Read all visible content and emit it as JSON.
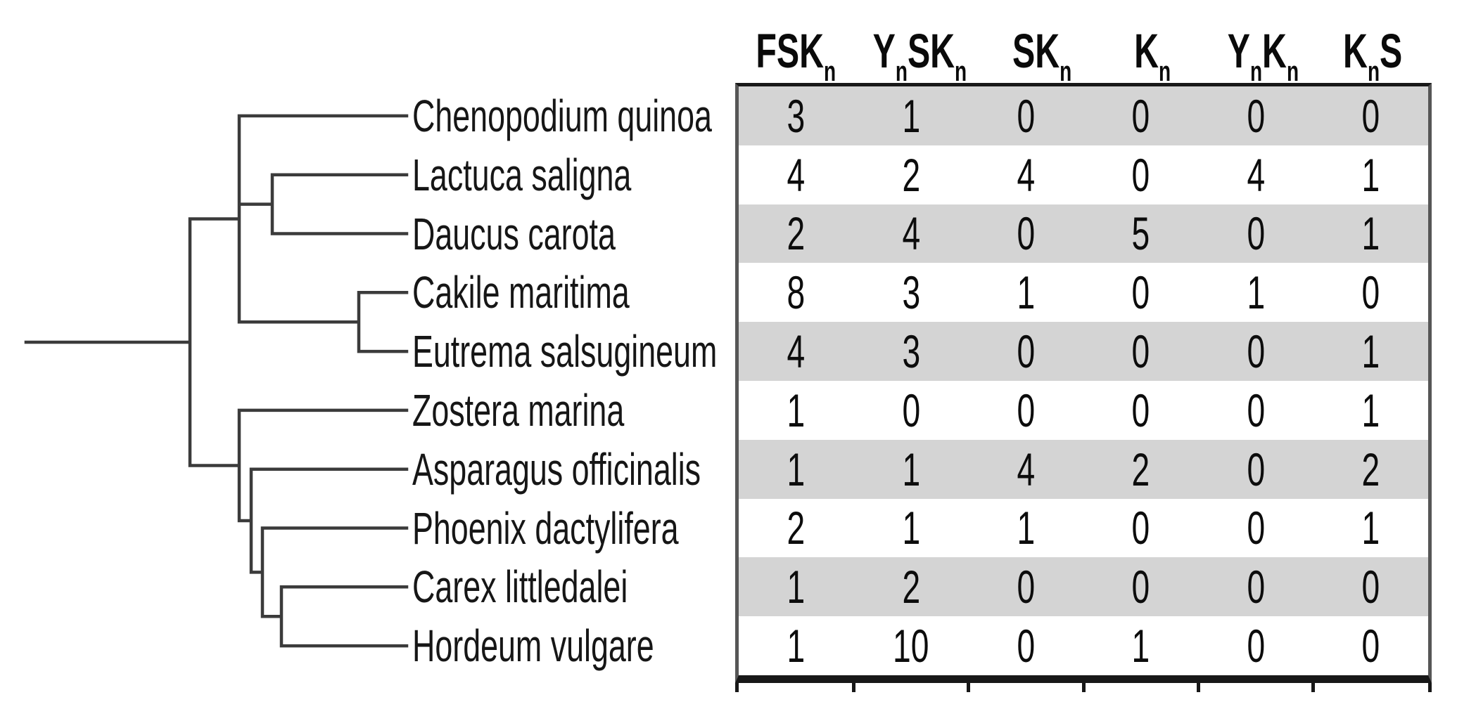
{
  "figure": {
    "description": "Phylogenetic tree of ten plant species with a matrix of gene-architecture counts per species",
    "background_color": "#ffffff",
    "stripe_color": "#d4d4d4",
    "border_color": "#181818",
    "tree_line_color": "#3b3b3b",
    "text_color": "#0c0c0c"
  },
  "tree": {
    "species": [
      "Chenopodium quinoa",
      "Lactuca saligna",
      "Daucus carota",
      "Cakile maritima",
      "Eutrema salsugineum",
      "Zostera marina",
      "Asparagus officinalis",
      "Phoenix dactylifera",
      "Carex littledalei",
      "Hordeum vulgare"
    ],
    "topology_newick": "((Chenopodium quinoa,(Lactuca saligna,Daucus carota),(Cakile maritima,Eutrema salsugineum)),(Zostera marina,(Asparagus officinalis,(Phoenix dactylifera,(Carex littledalei,Hordeum vulgare)))));"
  },
  "table": {
    "header_labels_plain": [
      "FSKn",
      "YnSKn",
      "SKn",
      "Kn",
      "YnKn",
      "KnS"
    ],
    "columns": [
      {
        "segments": [
          {
            "t": "FSK"
          },
          {
            "t": "n",
            "sub": true
          }
        ]
      },
      {
        "segments": [
          {
            "t": "Y"
          },
          {
            "t": "n",
            "sub": true
          },
          {
            "t": "SK"
          },
          {
            "t": "n",
            "sub": true
          }
        ]
      },
      {
        "segments": [
          {
            "t": "SK"
          },
          {
            "t": "n",
            "sub": true
          }
        ]
      },
      {
        "segments": [
          {
            "t": "K"
          },
          {
            "t": "n",
            "sub": true
          }
        ]
      },
      {
        "segments": [
          {
            "t": "Y"
          },
          {
            "t": "n",
            "sub": true
          },
          {
            "t": "K"
          },
          {
            "t": "n",
            "sub": true
          }
        ]
      },
      {
        "segments": [
          {
            "t": "K"
          },
          {
            "t": "n",
            "sub": true
          },
          {
            "t": "S"
          }
        ]
      }
    ],
    "rows": [
      [
        3,
        1,
        0,
        0,
        0,
        0
      ],
      [
        4,
        2,
        4,
        0,
        4,
        1
      ],
      [
        2,
        4,
        0,
        5,
        0,
        1
      ],
      [
        8,
        3,
        1,
        0,
        1,
        0
      ],
      [
        4,
        3,
        0,
        0,
        0,
        1
      ],
      [
        1,
        0,
        0,
        0,
        0,
        1
      ],
      [
        1,
        1,
        4,
        2,
        0,
        2
      ],
      [
        2,
        1,
        1,
        0,
        0,
        1
      ],
      [
        1,
        2,
        0,
        0,
        0,
        0
      ],
      [
        1,
        10,
        0,
        1,
        0,
        0
      ]
    ],
    "shaded_row_indices": [
      0,
      2,
      4,
      6,
      8
    ]
  },
  "chart_data": {
    "type": "table",
    "title": "",
    "columns": [
      "FSKn",
      "YnSKn",
      "SKn",
      "Kn",
      "YnKn",
      "KnS"
    ],
    "row_labels": [
      "Chenopodium quinoa",
      "Lactuca saligna",
      "Daucus carota",
      "Cakile maritima",
      "Eutrema salsugineum",
      "Zostera marina",
      "Asparagus officinalis",
      "Phoenix dactylifera",
      "Carex littledalei",
      "Hordeum vulgare"
    ],
    "values": [
      [
        3,
        1,
        0,
        0,
        0,
        0
      ],
      [
        4,
        2,
        4,
        0,
        4,
        1
      ],
      [
        2,
        4,
        0,
        5,
        0,
        1
      ],
      [
        8,
        3,
        1,
        0,
        1,
        0
      ],
      [
        4,
        3,
        0,
        0,
        0,
        1
      ],
      [
        1,
        0,
        0,
        0,
        0,
        1
      ],
      [
        1,
        1,
        4,
        2,
        0,
        2
      ],
      [
        2,
        1,
        1,
        0,
        0,
        1
      ],
      [
        1,
        2,
        0,
        0,
        0,
        0
      ],
      [
        1,
        10,
        0,
        1,
        0,
        0
      ]
    ],
    "tree_newick": "((Chenopodium quinoa,(Lactuca saligna,Daucus carota),(Cakile maritima,Eutrema salsugineum)),(Zostera marina,(Asparagus officinalis,(Phoenix dactylifera,(Carex littledalei,Hordeum vulgare)))));",
    "legend_position": "none",
    "grid": false
  }
}
